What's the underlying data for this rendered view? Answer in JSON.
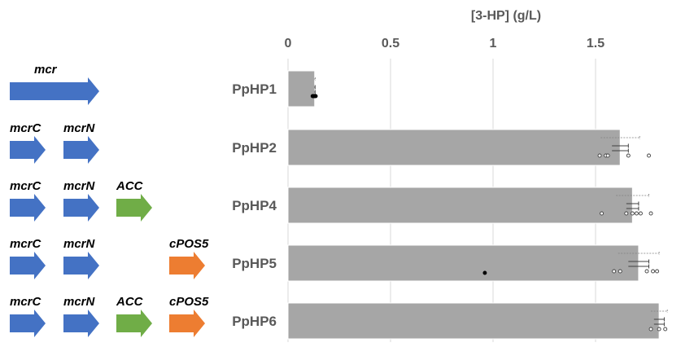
{
  "chart_data": {
    "type": "bar",
    "orientation": "horizontal",
    "title": "",
    "xlabel": "[3-HP] (g/L)",
    "xlim": [
      0,
      2
    ],
    "xticks": [
      "0",
      "0.5",
      "1",
      "1.5",
      "2"
    ],
    "grid": true,
    "axis_position": "top",
    "categories": [
      "PpHP1",
      "PpHP2",
      "PpHP4",
      "PpHP5",
      "PpHP6"
    ],
    "values": [
      0.13,
      1.62,
      1.68,
      1.71,
      1.81
    ],
    "error_solid": [
      0.002,
      0.04,
      0.03,
      0.05,
      0.025
    ],
    "error_dashed": [
      0.003,
      0.095,
      0.08,
      0.1,
      0.04
    ],
    "points_open": [
      [],
      [
        1.52,
        1.55,
        1.56,
        1.66,
        1.76
      ],
      [
        1.53,
        1.65,
        1.68,
        1.7,
        1.72,
        1.77
      ],
      [
        1.59,
        1.62,
        1.75,
        1.78,
        1.8
      ],
      [
        1.77,
        1.81,
        1.84
      ]
    ],
    "points_filled": [
      [
        0.12,
        0.125,
        0.13,
        0.135
      ],
      [],
      [],
      [
        0.96
      ],
      []
    ],
    "bar_color": "#a6a6a6"
  },
  "constructs": [
    {
      "genes": [
        {
          "name": "mcr",
          "color": "#4472c4",
          "slot": "long"
        }
      ]
    },
    {
      "genes": [
        {
          "name": "mcrC",
          "color": "#4472c4",
          "slot": 0
        },
        {
          "name": "mcrN",
          "color": "#4472c4",
          "slot": 1
        }
      ]
    },
    {
      "genes": [
        {
          "name": "mcrC",
          "color": "#4472c4",
          "slot": 0
        },
        {
          "name": "mcrN",
          "color": "#4472c4",
          "slot": 1
        },
        {
          "name": "ACC",
          "color": "#70ad47",
          "slot": 2
        }
      ]
    },
    {
      "genes": [
        {
          "name": "mcrC",
          "color": "#4472c4",
          "slot": 0
        },
        {
          "name": "mcrN",
          "color": "#4472c4",
          "slot": 1
        },
        {
          "name": "cPOS5",
          "color": "#ed7d31",
          "slot": 3
        }
      ]
    },
    {
      "genes": [
        {
          "name": "mcrC",
          "color": "#4472c4",
          "slot": 0
        },
        {
          "name": "mcrN",
          "color": "#4472c4",
          "slot": 1
        },
        {
          "name": "ACC",
          "color": "#70ad47",
          "slot": 2
        },
        {
          "name": "cPOS5",
          "color": "#ed7d31",
          "slot": 3
        }
      ]
    }
  ]
}
